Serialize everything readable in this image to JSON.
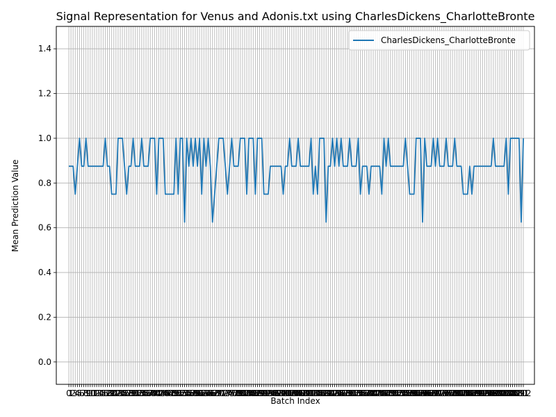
{
  "chart_data": {
    "type": "line",
    "title": "Signal Representation for Venus and Adonis.txt using CharlesDickens_CharlotteBronte",
    "xlabel": "Batch Index",
    "ylabel": "Mean Prediction Value",
    "ylim": [
      -0.1,
      1.5
    ],
    "yticks": [
      "0.0",
      "0.2",
      "0.4",
      "0.6",
      "0.8",
      "1.0",
      "1.2",
      "1.4"
    ],
    "ytick_values": [
      0.0,
      0.2,
      0.4,
      0.6,
      0.8,
      1.0,
      1.2,
      1.4
    ],
    "grid": true,
    "legend_position": "upper right",
    "series": [
      {
        "name": "CharlesDickens_CharlotteBronte",
        "color": "#1f77b4",
        "values": [
          0.875,
          0.875,
          0.875,
          0.75,
          0.875,
          1.0,
          0.875,
          0.875,
          1.0,
          0.875,
          0.875,
          0.875,
          0.875,
          0.875,
          0.875,
          0.875,
          0.875,
          1.0,
          0.875,
          0.875,
          0.75,
          0.75,
          0.75,
          1.0,
          1.0,
          1.0,
          0.875,
          0.75,
          0.875,
          0.875,
          1.0,
          0.875,
          0.875,
          0.875,
          1.0,
          0.875,
          0.875,
          0.875,
          1.0,
          1.0,
          1.0,
          0.75,
          1.0,
          1.0,
          1.0,
          0.75,
          0.75,
          0.75,
          0.75,
          0.75,
          1.0,
          0.75,
          1.0,
          1.0,
          0.625,
          1.0,
          0.875,
          1.0,
          0.875,
          1.0,
          0.875,
          1.0,
          0.75,
          1.0,
          0.875,
          1.0,
          0.875,
          0.625,
          0.75,
          0.875,
          1.0,
          1.0,
          1.0,
          0.875,
          0.75,
          0.875,
          1.0,
          0.875,
          0.875,
          0.875,
          1.0,
          1.0,
          1.0,
          0.75,
          1.0,
          1.0,
          1.0,
          0.75,
          1.0,
          1.0,
          1.0,
          0.75,
          0.75,
          0.75,
          0.875,
          0.875,
          0.875,
          0.875,
          0.875,
          0.875,
          0.75,
          0.875,
          0.875,
          1.0,
          0.875,
          0.875,
          0.875,
          1.0,
          0.875,
          0.875,
          0.875,
          0.875,
          0.875,
          1.0,
          0.75,
          0.875,
          0.75,
          1.0,
          1.0,
          1.0,
          0.625,
          0.875,
          0.875,
          1.0,
          0.875,
          1.0,
          0.875,
          1.0,
          0.875,
          0.875,
          0.875,
          1.0,
          0.875,
          0.875,
          0.875,
          1.0,
          0.75,
          0.875,
          0.875,
          0.875,
          0.75,
          0.875,
          0.875,
          0.875,
          0.875,
          0.875,
          0.75,
          1.0,
          0.875,
          1.0,
          0.875,
          0.875,
          0.875,
          0.875,
          0.875,
          0.875,
          0.875,
          1.0,
          0.875,
          0.75,
          0.75,
          0.75,
          1.0,
          1.0,
          1.0,
          0.625,
          1.0,
          0.875,
          0.875,
          0.875,
          1.0,
          0.875,
          1.0,
          0.875,
          0.875,
          0.875,
          1.0,
          0.875,
          0.875,
          0.875,
          1.0,
          0.875,
          0.875,
          0.875,
          0.75,
          0.75,
          0.75,
          0.875,
          0.75,
          0.875,
          0.875,
          0.875,
          0.875,
          0.875,
          0.875,
          0.875,
          0.875,
          0.875,
          1.0,
          0.875,
          0.875,
          0.875,
          0.875,
          0.875,
          1.0,
          0.75,
          1.0,
          1.0,
          1.0,
          1.0,
          1.0,
          0.625,
          1.0
        ]
      }
    ]
  }
}
